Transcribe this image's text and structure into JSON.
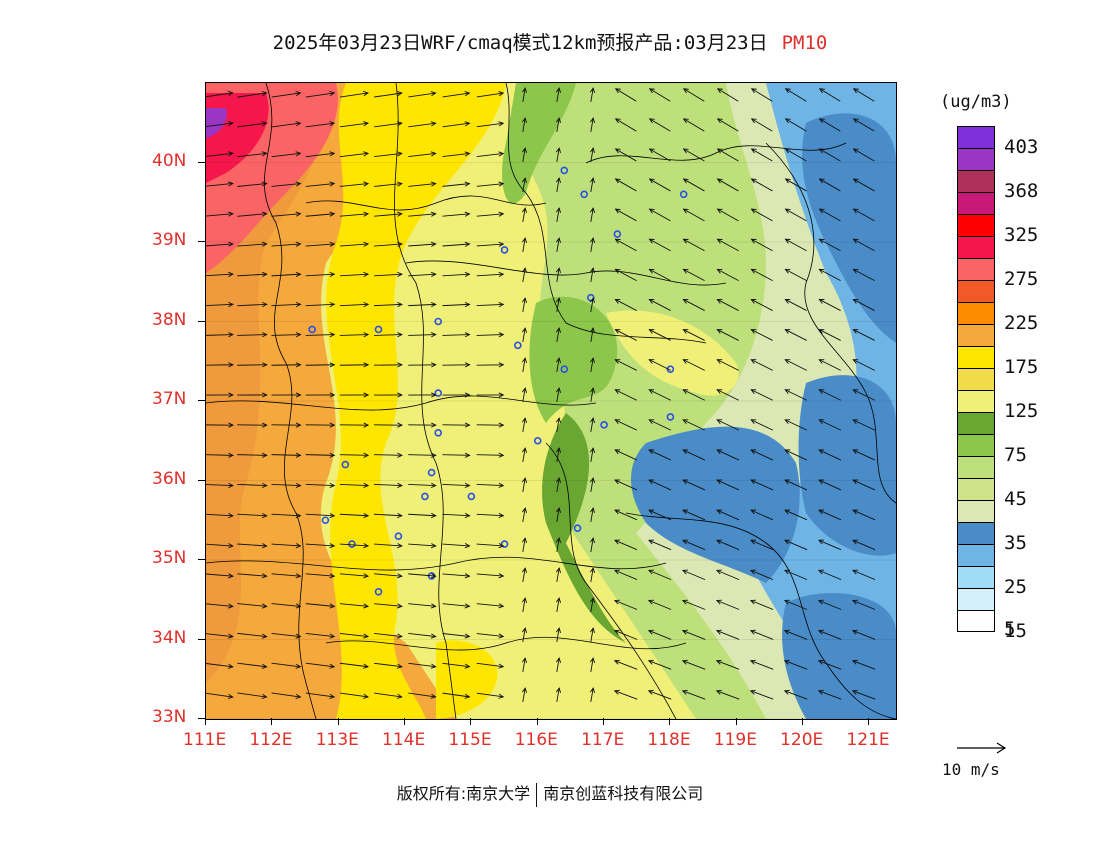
{
  "title": {
    "main": "2025年03月23日WRF/cmaq模式12km预报产品:03月23日",
    "variable": "PM10"
  },
  "map": {
    "lat_labels": [
      "40N",
      "39N",
      "38N",
      "37N",
      "36N",
      "35N",
      "34N",
      "33N"
    ],
    "lon_labels": [
      "111E",
      "112E",
      "113E",
      "114E",
      "115E",
      "116E",
      "117E",
      "118E",
      "119E",
      "120E",
      "121E"
    ],
    "lat_range": [
      33,
      41
    ],
    "lon_range": [
      111,
      121.4
    ]
  },
  "legend": {
    "unit": "(ug/m3)",
    "labels": [
      "403",
      "368",
      "325",
      "275",
      "225",
      "175",
      "125",
      "75",
      "45",
      "35",
      "25",
      "15",
      "5"
    ],
    "colors": [
      "#7f2fd8",
      "#9b36c4",
      "#b0305c",
      "#c81878",
      "#ff0000",
      "#f5164c",
      "#fb6464",
      "#ef5a28",
      "#ff8c00",
      "#f5a83c",
      "#ffe600",
      "#f0dc4a",
      "#f0f078",
      "#6aa632",
      "#8cc64a",
      "#bee07a",
      "#cfe38c",
      "#dce8b4",
      "#4a8cc8",
      "#6eb4e4",
      "#a0dcf5",
      "#d4f0fa",
      "#ffffff"
    ]
  },
  "wind_reference": {
    "label": "10 m/s"
  },
  "colors": {
    "label_red": "#e0302a",
    "marker_blue": "#2850e6"
  },
  "copyright": {
    "owner": "版权所有:南京大学",
    "company": "南京创蓝科技有限公司"
  }
}
